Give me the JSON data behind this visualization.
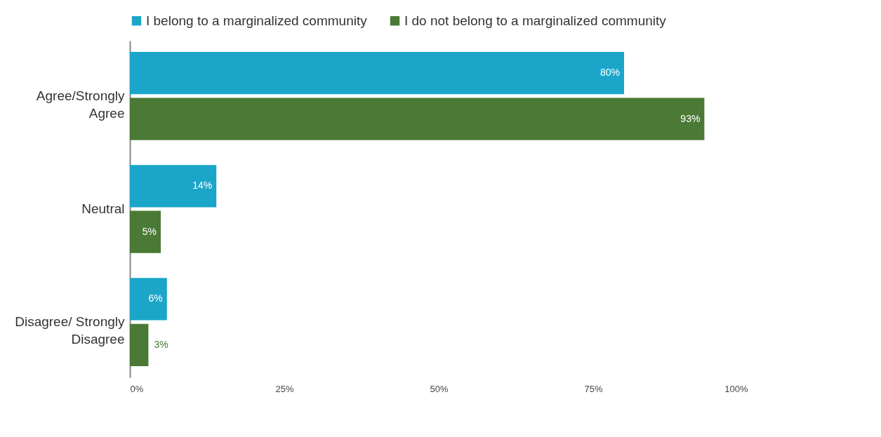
{
  "chart_data": {
    "type": "bar",
    "orientation": "horizontal",
    "categories": [
      "Agree/Strongly Agree",
      "Neutral",
      "Disagree/ Strongly Disagree"
    ],
    "series": [
      {
        "name": "I belong to a marginalized community",
        "color": "#1ba6c9",
        "values": [
          80,
          14,
          6
        ],
        "value_labels": [
          "80%",
          "14%",
          "6%"
        ]
      },
      {
        "name": "I do not belong to a marginalized community",
        "color": "#4a7a35",
        "values": [
          93,
          5,
          3
        ],
        "value_labels": [
          "93%",
          "5%",
          "3%"
        ]
      }
    ],
    "xlim": [
      0,
      100
    ],
    "xticks": [
      {
        "value": 0,
        "label": "0%"
      },
      {
        "value": 25,
        "label": "25%"
      },
      {
        "value": 50,
        "label": "50%"
      },
      {
        "value": 75,
        "label": "75%"
      },
      {
        "value": 100,
        "label": "100%"
      }
    ],
    "grid": false,
    "legend": "top"
  }
}
